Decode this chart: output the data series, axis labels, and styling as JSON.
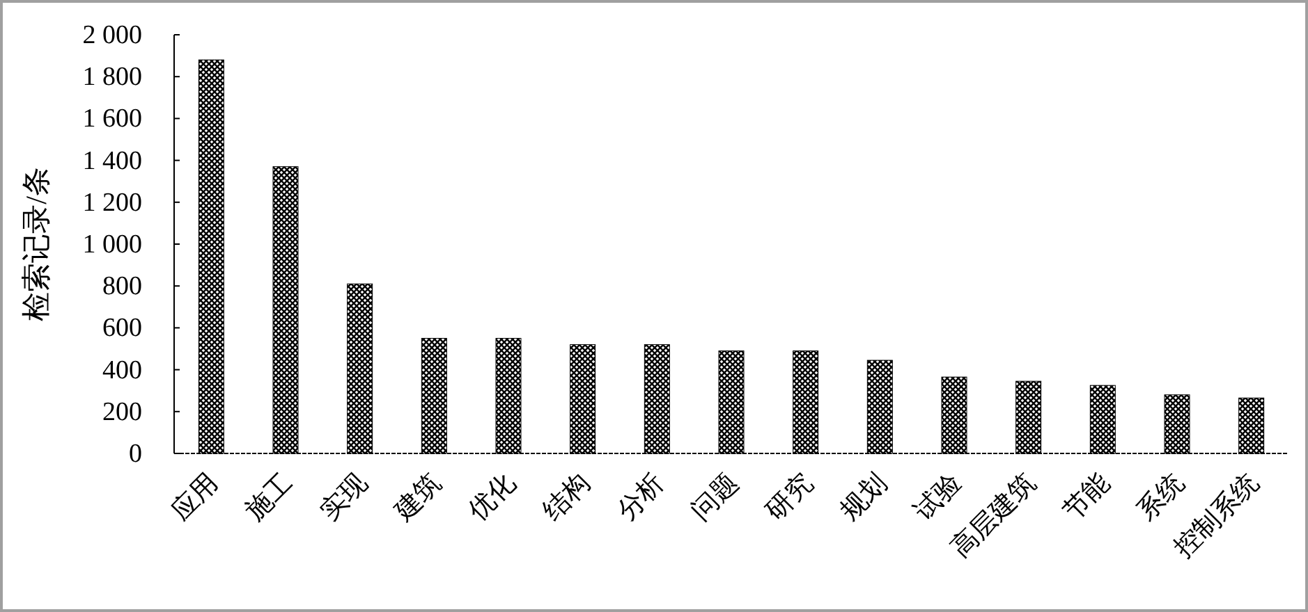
{
  "chart_data": {
    "type": "bar",
    "ylabel": "检索记录/条",
    "categories": [
      "应用",
      "施工",
      "实现",
      "建筑",
      "优化",
      "结构",
      "分析",
      "问题",
      "研究",
      "规划",
      "试验",
      "高层建筑",
      "节能",
      "系统",
      "控制系统"
    ],
    "values": [
      1880,
      1370,
      810,
      550,
      550,
      520,
      520,
      490,
      490,
      445,
      365,
      345,
      325,
      280,
      265
    ],
    "color": "#000000",
    "ylim": [
      0,
      2000
    ],
    "yticks": [
      0,
      200,
      400,
      600,
      800,
      {
        "value": 1000,
        "label": "1 000"
      },
      {
        "value": 1200,
        "label": "1 200"
      },
      {
        "value": 1400,
        "label": "1 400"
      },
      {
        "value": 1600,
        "label": "1 600"
      },
      {
        "value": 1800,
        "label": "1 800"
      },
      {
        "value": 2000,
        "label": "2 000"
      }
    ],
    "grid": false
  }
}
